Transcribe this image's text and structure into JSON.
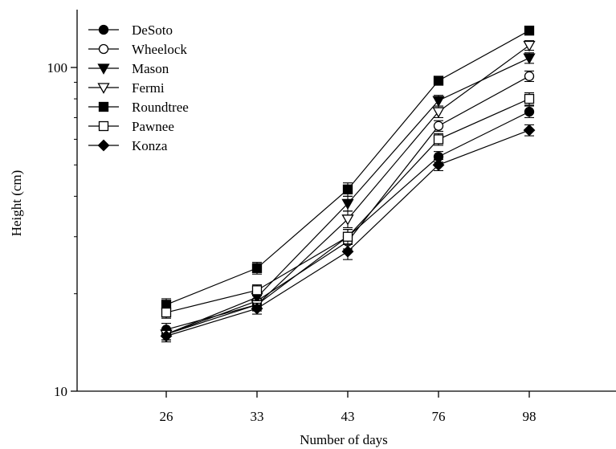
{
  "chart_data": {
    "type": "line",
    "xlabel": "Number of days",
    "ylabel": "Height (cm)",
    "categories": [
      "26",
      "33",
      "43",
      "76",
      "98"
    ],
    "yscale": "log",
    "ylim": [
      10,
      140
    ],
    "yticks": [
      10,
      100
    ],
    "grid": false,
    "legend_position": "top-left",
    "series": [
      {
        "name": "DeSoto",
        "marker": "circle",
        "filled": true,
        "values": [
          15.5,
          18.5,
          30.0,
          53.0,
          73.0
        ],
        "errors": [
          0.7,
          0.8,
          1.6,
          2.0,
          3.0
        ]
      },
      {
        "name": "Wheelock",
        "marker": "circle",
        "filled": false,
        "values": [
          15.0,
          19.0,
          29.0,
          66.0,
          94.0
        ],
        "errors": [
          0.6,
          0.8,
          1.5,
          2.5,
          3.5
        ]
      },
      {
        "name": "Mason",
        "marker": "triangle-down",
        "filled": true,
        "values": [
          15.0,
          19.5,
          38.0,
          79.0,
          107.0
        ],
        "errors": [
          0.6,
          0.8,
          2.0,
          3.0,
          4.0
        ]
      },
      {
        "name": "Fermi",
        "marker": "triangle-down",
        "filled": false,
        "values": [
          15.0,
          18.5,
          34.0,
          73.0,
          117.0
        ],
        "errors": [
          0.6,
          0.8,
          2.0,
          3.0,
          4.0
        ]
      },
      {
        "name": "Roundtree",
        "marker": "square",
        "filled": true,
        "values": [
          18.5,
          24.0,
          42.0,
          91.0,
          130.0
        ],
        "errors": [
          0.8,
          1.0,
          2.0,
          2.5,
          4.0
        ]
      },
      {
        "name": "Pawnee",
        "marker": "square",
        "filled": false,
        "values": [
          17.5,
          20.5,
          30.0,
          60.0,
          80.0
        ],
        "errors": [
          0.7,
          0.8,
          1.6,
          2.5,
          3.5
        ]
      },
      {
        "name": "Konza",
        "marker": "diamond",
        "filled": true,
        "values": [
          14.8,
          18.0,
          27.0,
          50.0,
          64.0
        ],
        "errors": [
          0.6,
          0.7,
          1.5,
          2.0,
          2.5
        ]
      }
    ]
  }
}
